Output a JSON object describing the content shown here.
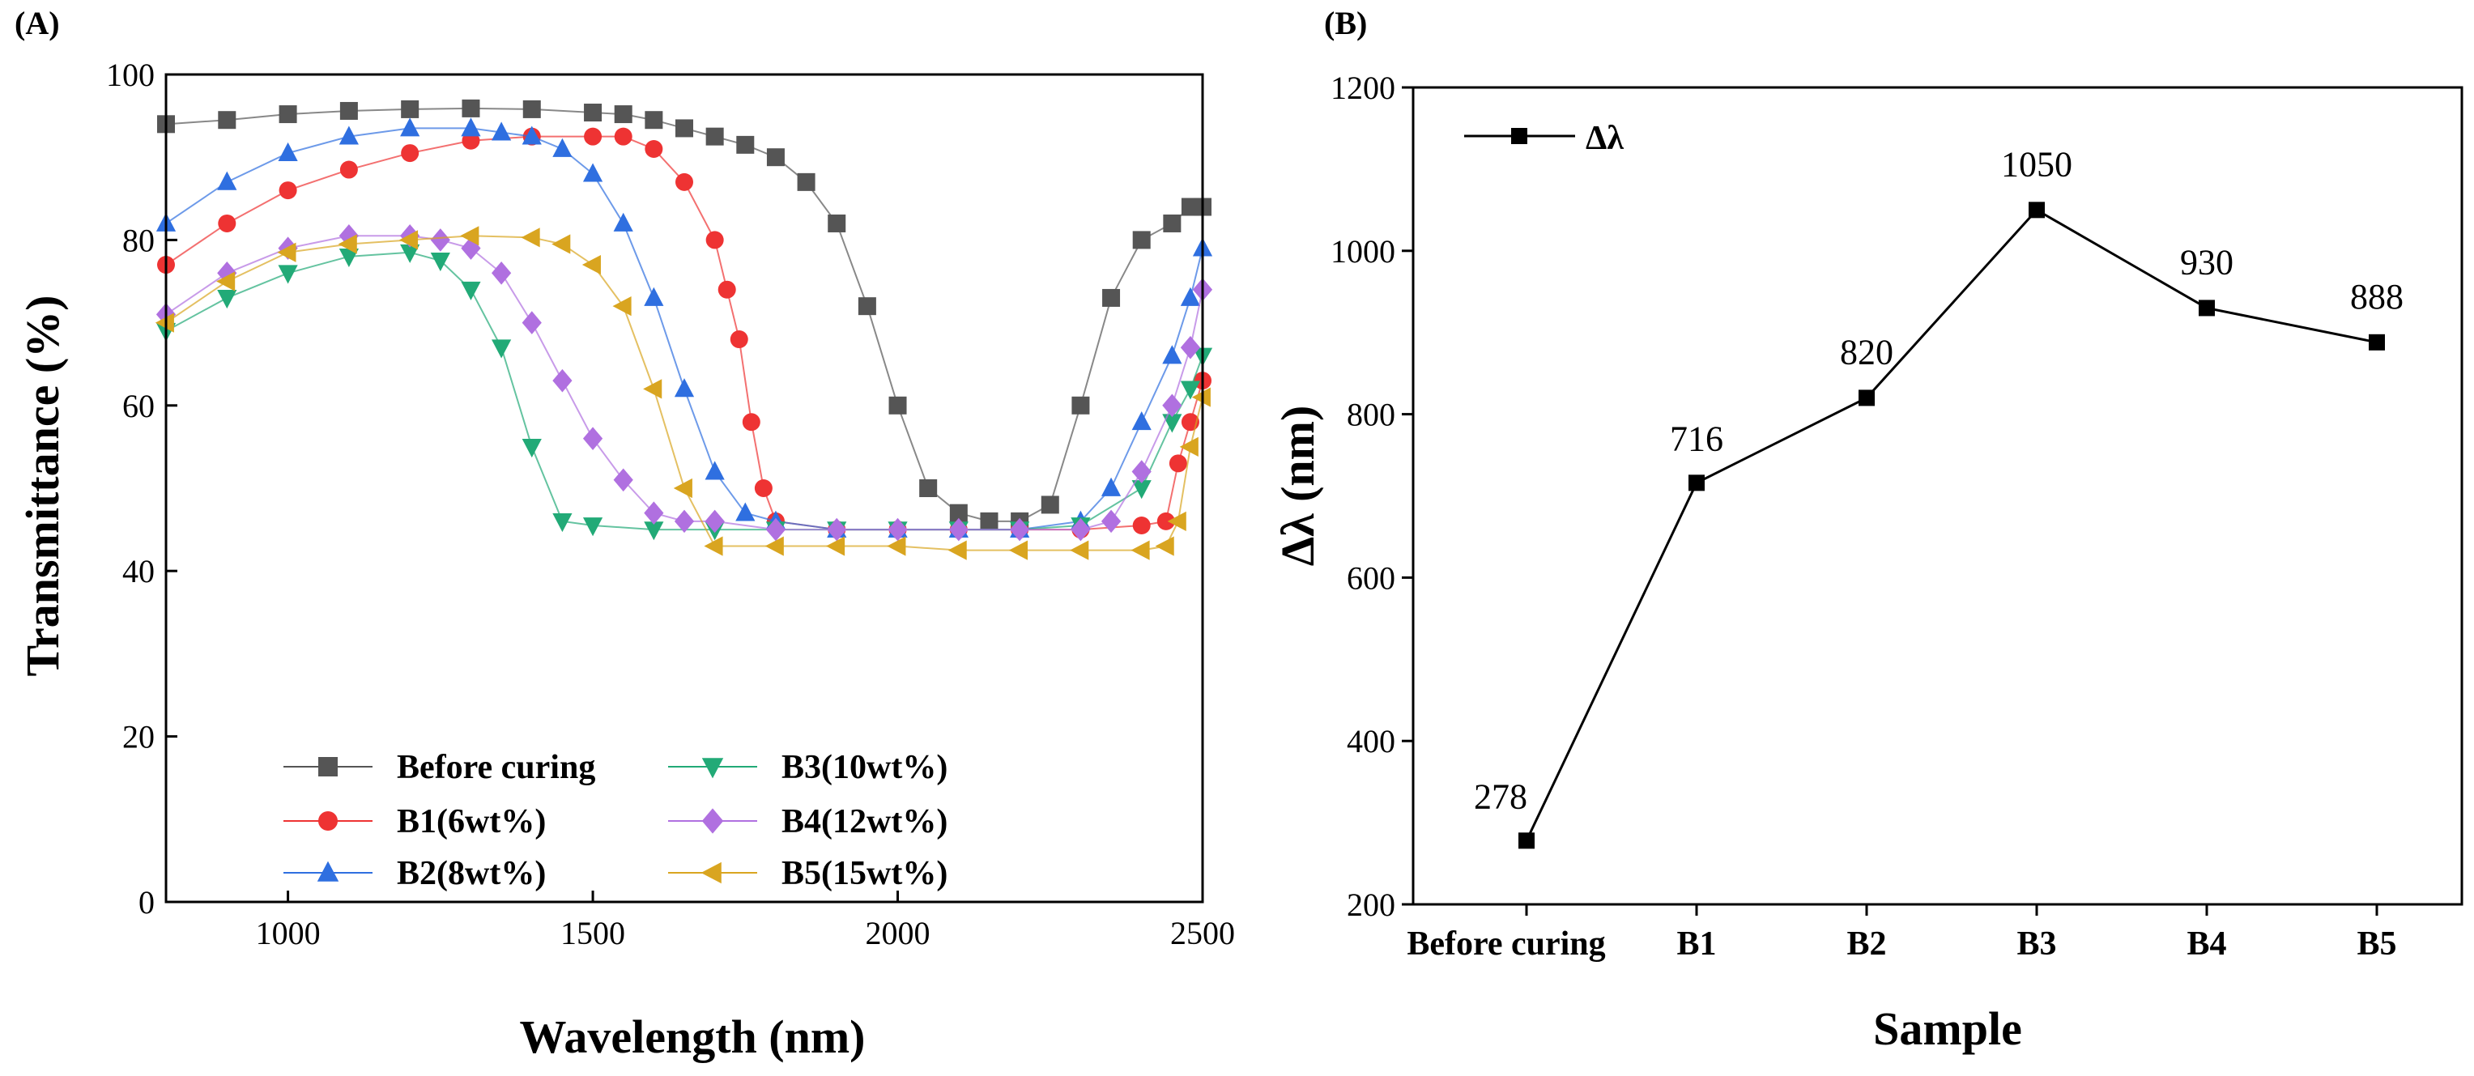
{
  "chart_data": [
    {
      "panel": "(A)",
      "type": "scatter",
      "xlabel": "Wavelength (nm)",
      "ylabel": "Transmittance (%)",
      "xlim": [
        800,
        2500
      ],
      "ylim": [
        0,
        100
      ],
      "xticks": [
        1000,
        1500,
        2000,
        2500
      ],
      "yticks": [
        0,
        20,
        40,
        60,
        80,
        100
      ],
      "legend_position": "bottom-left",
      "series": [
        {
          "name": "Before curing",
          "color": "#555555",
          "marker": "square",
          "x": [
            800,
            900,
            1000,
            1100,
            1200,
            1300,
            1400,
            1500,
            1550,
            1600,
            1650,
            1700,
            1750,
            1800,
            1850,
            1900,
            1950,
            2000,
            2050,
            2100,
            2150,
            2200,
            2250,
            2300,
            2350,
            2400,
            2450,
            2480,
            2500
          ],
          "y": [
            94,
            94.5,
            95.2,
            95.6,
            95.8,
            95.9,
            95.8,
            95.4,
            95.2,
            94.5,
            93.5,
            92.5,
            91.5,
            90,
            87,
            82,
            72,
            60,
            50,
            47,
            46,
            46,
            48,
            60,
            73,
            80,
            82,
            84,
            84
          ]
        },
        {
          "name": "B1(6wt%)",
          "color": "#ee3333",
          "marker": "circle",
          "x": [
            800,
            900,
            1000,
            1100,
            1200,
            1300,
            1400,
            1500,
            1550,
            1600,
            1650,
            1700,
            1720,
            1740,
            1760,
            1780,
            1800,
            1900,
            2000,
            2100,
            2200,
            2300,
            2400,
            2440,
            2460,
            2480,
            2500
          ],
          "y": [
            77,
            82,
            86,
            88.5,
            90.5,
            92,
            92.5,
            92.5,
            92.5,
            91,
            87,
            80,
            74,
            68,
            58,
            50,
            46,
            45,
            45,
            45,
            45,
            45,
            45.5,
            46,
            53,
            58,
            63
          ]
        },
        {
          "name": "B2(8wt%)",
          "color": "#2f6fe0",
          "marker": "triangle-up",
          "x": [
            800,
            900,
            1000,
            1100,
            1200,
            1300,
            1350,
            1400,
            1450,
            1500,
            1550,
            1600,
            1650,
            1700,
            1750,
            1800,
            1900,
            2000,
            2100,
            2200,
            2300,
            2350,
            2400,
            2450,
            2480,
            2500
          ],
          "y": [
            82,
            87,
            90.5,
            92.5,
            93.5,
            93.5,
            93,
            92.5,
            91,
            88,
            82,
            73,
            62,
            52,
            47,
            46,
            45,
            45,
            45,
            45,
            46,
            50,
            58,
            66,
            73,
            79
          ]
        },
        {
          "name": "B3(10wt%)",
          "color": "#22aa77",
          "marker": "triangle-down",
          "x": [
            800,
            900,
            1000,
            1100,
            1200,
            1250,
            1300,
            1350,
            1400,
            1450,
            1500,
            1600,
            1700,
            1800,
            1900,
            2000,
            2100,
            2200,
            2300,
            2400,
            2450,
            2480,
            2500
          ],
          "y": [
            69,
            73,
            76,
            78,
            78.5,
            77.5,
            74,
            67,
            55,
            46,
            45.5,
            45,
            45,
            45,
            45,
            45,
            45,
            45,
            45.5,
            50,
            58,
            62,
            66
          ]
        },
        {
          "name": "B4(12wt%)",
          "color": "#b070e0",
          "marker": "diamond",
          "x": [
            800,
            900,
            1000,
            1100,
            1200,
            1250,
            1300,
            1350,
            1400,
            1450,
            1500,
            1550,
            1600,
            1650,
            1700,
            1800,
            1900,
            2000,
            2100,
            2200,
            2300,
            2350,
            2400,
            2450,
            2480,
            2500
          ],
          "y": [
            71,
            76,
            79,
            80.5,
            80.5,
            80,
            79,
            76,
            70,
            63,
            56,
            51,
            47,
            46,
            46,
            45,
            45,
            45,
            45,
            45,
            45,
            46,
            52,
            60,
            67,
            74
          ]
        },
        {
          "name": "B5(15wt%)",
          "color": "#d9a520",
          "marker": "triangle-left",
          "x": [
            800,
            900,
            1000,
            1100,
            1200,
            1300,
            1400,
            1450,
            1500,
            1550,
            1600,
            1650,
            1700,
            1800,
            1900,
            2000,
            2100,
            2200,
            2300,
            2400,
            2440,
            2460,
            2480,
            2500
          ],
          "y": [
            70,
            75,
            78.5,
            79.5,
            80,
            80.5,
            80.3,
            79.5,
            77,
            72,
            62,
            50,
            43,
            43,
            43,
            43,
            42.5,
            42.5,
            42.5,
            42.5,
            43,
            46,
            55,
            61
          ]
        }
      ]
    },
    {
      "panel": "(B)",
      "type": "line",
      "xlabel": "Sample",
      "ylabel": "Δλ (nm)",
      "categories": [
        "Before curing",
        "B1",
        "B2",
        "B3",
        "B4",
        "B5"
      ],
      "ylim": [
        200,
        1200
      ],
      "yticks": [
        200,
        400,
        600,
        800,
        1000,
        1200
      ],
      "legend_position": "top-left",
      "series": [
        {
          "name": "Δλ",
          "color": "#000000",
          "marker": "square",
          "values": [
            278,
            716,
            820,
            1050,
            930,
            888
          ],
          "labels": [
            "278",
            "716",
            "820",
            "1050",
            "930",
            "888"
          ]
        }
      ]
    }
  ]
}
